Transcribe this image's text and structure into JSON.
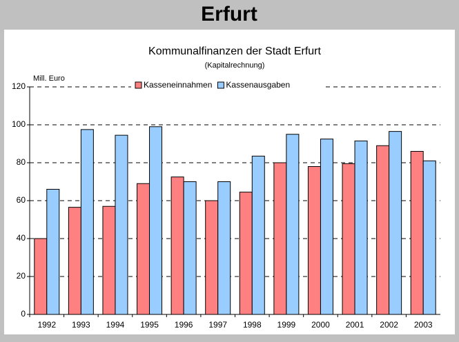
{
  "header": {
    "title": "Erfurt"
  },
  "chart_data": {
    "type": "bar",
    "title": "Kommunalfinanzen der Stadt Erfurt",
    "subtitle": "(Kapitalrechnung)",
    "y_label": "Mill. Euro",
    "categories": [
      "1992",
      "1993",
      "1994",
      "1995",
      "1996",
      "1997",
      "1998",
      "1999",
      "2000",
      "2001",
      "2002",
      "2003"
    ],
    "series": [
      {
        "name": "Kasseneinnahmen",
        "color": "#ff8080",
        "values": [
          40,
          56.5,
          57,
          69,
          72.5,
          60,
          64.5,
          80,
          78,
          79.5,
          89,
          86
        ]
      },
      {
        "name": "Kassenausgaben",
        "color": "#99ccff",
        "values": [
          66,
          97.5,
          94.5,
          99,
          70,
          70,
          83.5,
          95,
          92.5,
          91.5,
          96.5,
          81
        ]
      }
    ],
    "ylim": [
      0,
      120
    ],
    "yticks": [
      0,
      20,
      40,
      60,
      80,
      100,
      120
    ],
    "grid": true,
    "legend": "top"
  }
}
